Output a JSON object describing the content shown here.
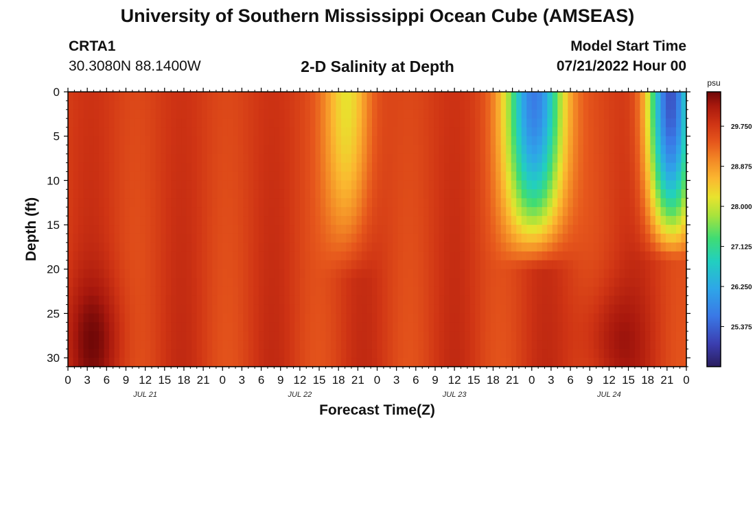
{
  "header": {
    "title": "University of Southern Mississippi Ocean Cube (AMSEAS)",
    "station_id": "CRTA1",
    "station_coords": "30.3080N  88.1400W",
    "plot_title": "2-D Salinity at Depth",
    "model_start_label": "Model Start Time",
    "model_start_value": "07/21/2022 Hour 00"
  },
  "footer": {
    "title": "University of Southern Mississippi Ocean Cube (AMSEAS)"
  },
  "chart_data": {
    "type": "heatmap",
    "variable": "Salinity",
    "units": "psu",
    "ylabel": "Depth (ft)",
    "xlabel": "Forecast Time(Z)",
    "y_ticks": [
      0,
      5,
      10,
      15,
      20,
      25,
      30
    ],
    "ylim": [
      0,
      31
    ],
    "y_inverted": true,
    "x_range_hours": [
      0,
      96
    ],
    "x_tick_labels": [
      "0",
      "3",
      "6",
      "9",
      "12",
      "15",
      "18",
      "21",
      "0",
      "3",
      "6",
      "9",
      "12",
      "15",
      "18",
      "21",
      "0",
      "3",
      "6",
      "9",
      "12",
      "15",
      "18",
      "21",
      "0",
      "3",
      "6",
      "9",
      "12",
      "15",
      "18",
      "21",
      "0"
    ],
    "date_labels": [
      {
        "label": "JUL 21",
        "hour": 12
      },
      {
        "label": "JUL 22",
        "hour": 36
      },
      {
        "label": "JUL 23",
        "hour": 60
      },
      {
        "label": "JUL 24",
        "hour": 84
      }
    ],
    "colorbar": {
      "range": [
        24.5,
        30.5
      ],
      "tick_values": [
        25.375,
        26.25,
        27.125,
        28.0,
        28.875,
        29.75
      ],
      "tick_labels": [
        "25.375",
        "26.250",
        "27.125",
        "28.000",
        "28.875",
        "29.750"
      ]
    },
    "colorscale": [
      {
        "value": 24.5,
        "color": "#2a1e5e"
      },
      {
        "value": 25.0,
        "color": "#3b3eb0"
      },
      {
        "value": 25.6,
        "color": "#3a78e6"
      },
      {
        "value": 26.2,
        "color": "#2ea6e8"
      },
      {
        "value": 26.8,
        "color": "#22cfc0"
      },
      {
        "value": 27.3,
        "color": "#3fdc74"
      },
      {
        "value": 27.8,
        "color": "#a8e33c"
      },
      {
        "value": 28.2,
        "color": "#e8e32e"
      },
      {
        "value": 28.6,
        "color": "#fbb830"
      },
      {
        "value": 29.0,
        "color": "#f38a26"
      },
      {
        "value": 29.4,
        "color": "#e6571c"
      },
      {
        "value": 29.8,
        "color": "#cf3414"
      },
      {
        "value": 30.2,
        "color": "#a8180d"
      },
      {
        "value": 30.5,
        "color": "#6e0707"
      }
    ],
    "base_salinity": 29.7,
    "features": [
      {
        "kind": "freshening",
        "hour": 43.5,
        "sigma_hours": 2.6,
        "depth_max_ft": 21,
        "surface_value": 28.15
      },
      {
        "kind": "freshening",
        "hour": 72.5,
        "sigma_hours": 3.2,
        "depth_max_ft": 20,
        "surface_value": 25.55
      },
      {
        "kind": "freshening",
        "hour": 93.5,
        "sigma_hours": 2.5,
        "depth_max_ft": 19,
        "surface_value": 25.3
      },
      {
        "kind": "saline",
        "hour": 4,
        "sigma_hours": 3.5,
        "depth_center_ft": 28,
        "sigma_depth_ft": 5,
        "amplitude": 0.55
      },
      {
        "kind": "saline",
        "hour": 84,
        "sigma_hours": 3.5,
        "depth_center_ft": 28,
        "sigma_depth_ft": 4.5,
        "amplitude": 0.5
      }
    ],
    "colors": {
      "axis": "#111111",
      "frame": "#000000"
    }
  }
}
